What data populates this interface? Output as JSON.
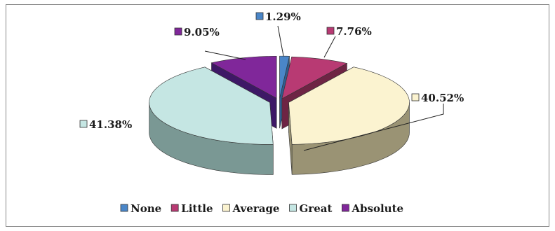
{
  "chart_data": {
    "type": "pie",
    "style": "3d-exploded",
    "title": "",
    "categories": [
      "None",
      "Little",
      "Average",
      "Great",
      "Absolute"
    ],
    "values": [
      1.29,
      7.76,
      40.52,
      41.38,
      9.05
    ],
    "labels": [
      "1.29%",
      "7.76%",
      "40.52%",
      "41.38%",
      "9.05%"
    ],
    "unit": "%",
    "legend_position": "bottom",
    "colors": {
      "None": "#4a86c8",
      "Little": "#b83a73",
      "Average": "#fbf3d0",
      "Great": "#c5e6e3",
      "Absolute": "#80279a"
    },
    "side_colors": {
      "None": "#2f5d8f",
      "Little": "#6e2444",
      "Average": "#9a9374",
      "Great": "#7a9894",
      "Absolute": "#3e1866"
    }
  }
}
